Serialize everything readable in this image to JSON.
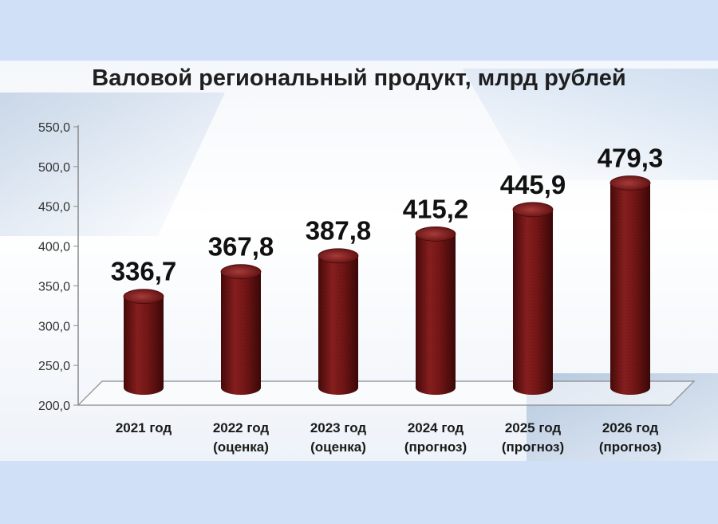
{
  "colors": {
    "bar": "#7a1717",
    "bar_dark": "#4a0a0a",
    "bar_light": "#a83a3a",
    "axis_text": "#333333",
    "label_text": "#111111"
  },
  "chart_data": {
    "type": "bar",
    "title": "Валовой региональный продукт, млрд рублей",
    "categories": [
      [
        "2021 год",
        ""
      ],
      [
        "2022 год",
        "(оценка)"
      ],
      [
        "2023 год",
        "(оценка)"
      ],
      [
        "2024 год",
        "(прогноз)"
      ],
      [
        "2025 год",
        "(прогноз)"
      ],
      [
        "2026 год",
        "(прогноз)"
      ]
    ],
    "values": [
      336.7,
      367.8,
      387.8,
      415.2,
      445.9,
      479.3
    ],
    "value_labels": [
      "336,7",
      "367,8",
      "387,8",
      "415,2",
      "445,9",
      "479,3"
    ],
    "ylim": [
      200,
      550
    ],
    "yticks": [
      200,
      250,
      300,
      350,
      400,
      450,
      500,
      550
    ],
    "ytick_labels": [
      "200,0",
      "250,0",
      "300,0",
      "350,0",
      "400,0",
      "450,0",
      "500,0",
      "550,0"
    ],
    "xlabel": "",
    "ylabel": "",
    "grid": false,
    "legend": "none"
  }
}
